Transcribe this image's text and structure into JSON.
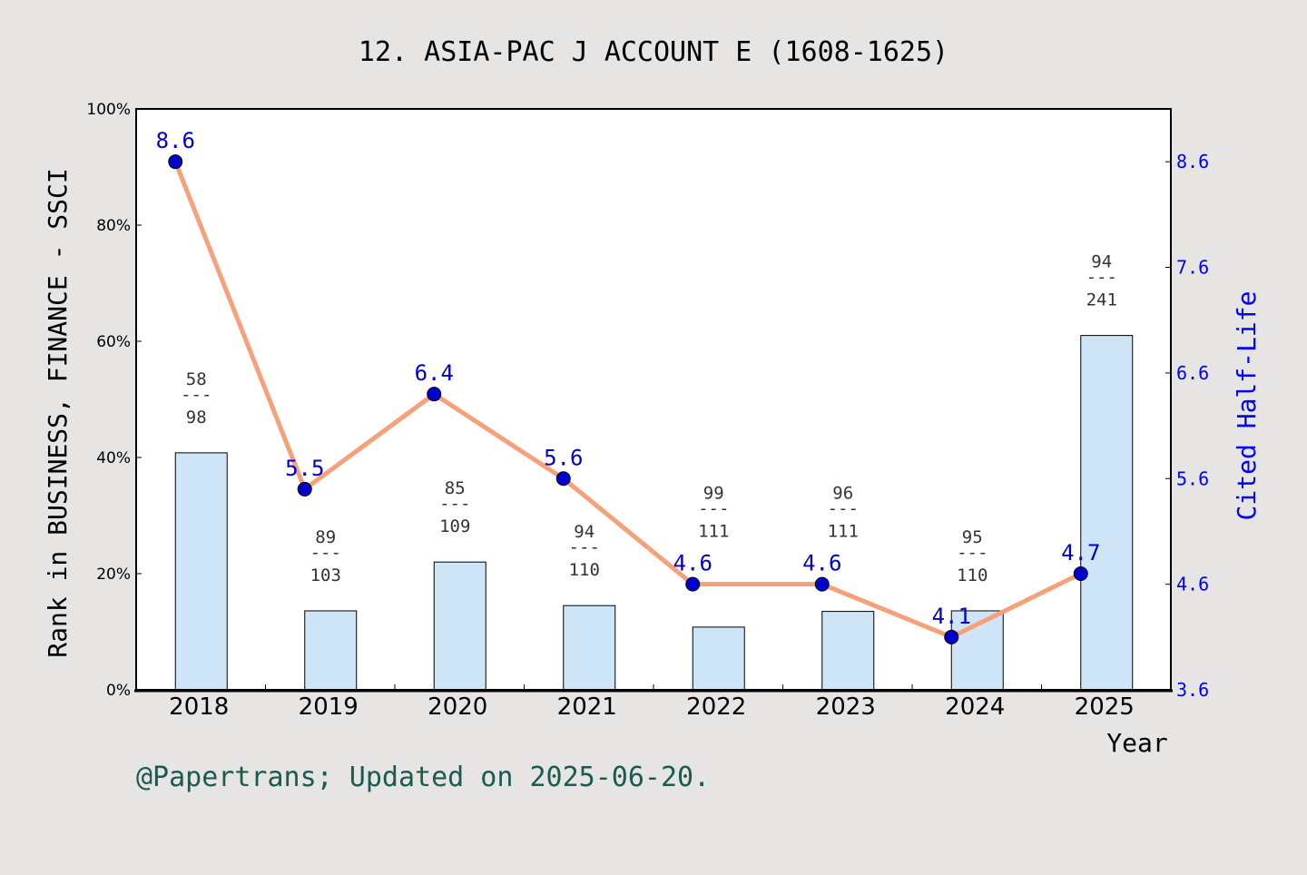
{
  "chart_data": {
    "type": "bar+line",
    "title": "12. ASIA-PAC J ACCOUNT E (1608-1625)",
    "xlabel": "Year",
    "ylabel_left": "Rank in BUSINESS, FINANCE - SSCI",
    "ylabel_right": "Cited Half-Life",
    "categories": [
      "2018",
      "2019",
      "2020",
      "2021",
      "2022",
      "2023",
      "2024",
      "2025"
    ],
    "left_axis": {
      "range": [
        0,
        100
      ],
      "ticks": [
        "0%",
        "20%",
        "40%",
        "60%",
        "80%",
        "100%"
      ],
      "tick_values": [
        0,
        20,
        40,
        60,
        80,
        100
      ]
    },
    "right_axis": {
      "range": [
        3.6,
        9.1
      ],
      "ticks": [
        "3.6",
        "4.6",
        "5.6",
        "6.6",
        "7.6",
        "8.6"
      ],
      "tick_values": [
        3.6,
        4.6,
        5.6,
        6.6,
        7.6,
        8.6
      ]
    },
    "rank_bars": {
      "ranks": [
        58,
        89,
        85,
        94,
        99,
        96,
        95,
        94
      ],
      "totals": [
        98,
        103,
        109,
        110,
        111,
        111,
        110,
        241
      ],
      "percentile": [
        40.8,
        13.6,
        22.0,
        14.5,
        10.8,
        13.5,
        13.6,
        61.0
      ],
      "separator": "---"
    },
    "half_life_line": {
      "values": [
        8.6,
        5.5,
        6.4,
        5.6,
        4.6,
        4.6,
        4.1,
        4.7
      ],
      "labels": [
        "8.6",
        "5.5",
        "6.4",
        "5.6",
        "4.6",
        "4.6",
        "4.1",
        "4.7"
      ]
    },
    "grid": false,
    "colors": {
      "bar": "#c5dff6",
      "line": "#f7a07a",
      "marker": "#0000cc",
      "right_axis": "#0000ff",
      "footer": "#1a5a50",
      "background": "#e6e5e3"
    }
  },
  "footer": "@Papertrans; Updated on 2025-06-20."
}
